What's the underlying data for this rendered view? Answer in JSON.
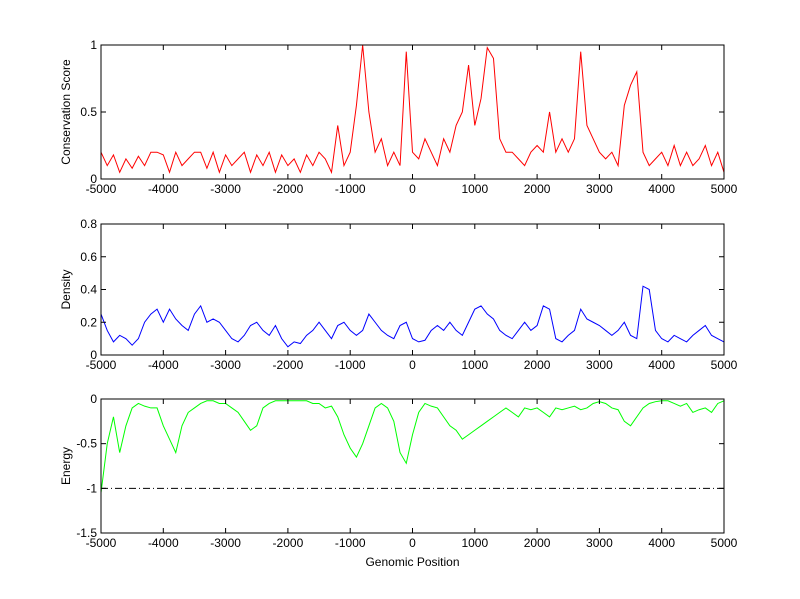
{
  "chart_data": [
    {
      "type": "line",
      "ylabel": "Conservation Score",
      "x": [
        -5000,
        -4900,
        -4800,
        -4700,
        -4600,
        -4500,
        -4400,
        -4300,
        -4200,
        -4100,
        -4000,
        -3900,
        -3800,
        -3700,
        -3600,
        -3500,
        -3400,
        -3300,
        -3200,
        -3100,
        -3000,
        -2900,
        -2800,
        -2700,
        -2600,
        -2500,
        -2400,
        -2300,
        -2200,
        -2100,
        -2000,
        -1900,
        -1800,
        -1700,
        -1600,
        -1500,
        -1400,
        -1300,
        -1200,
        -1100,
        -1000,
        -900,
        -800,
        -700,
        -600,
        -500,
        -400,
        -300,
        -200,
        -100,
        0,
        100,
        200,
        300,
        400,
        500,
        600,
        700,
        800,
        900,
        1000,
        1100,
        1200,
        1300,
        1400,
        1500,
        1600,
        1700,
        1800,
        1900,
        2000,
        2100,
        2200,
        2300,
        2400,
        2500,
        2600,
        2700,
        2800,
        2900,
        3000,
        3100,
        3200,
        3300,
        3400,
        3500,
        3600,
        3700,
        3800,
        3900,
        4000,
        4100,
        4200,
        4300,
        4400,
        4500,
        4600,
        4700,
        4800,
        4900,
        5000
      ],
      "series": [
        {
          "color": "#ff0000",
          "values": [
            0.2,
            0.1,
            0.18,
            0.05,
            0.15,
            0.08,
            0.17,
            0.1,
            0.2,
            0.2,
            0.18,
            0.05,
            0.2,
            0.1,
            0.15,
            0.2,
            0.2,
            0.08,
            0.2,
            0.05,
            0.18,
            0.1,
            0.15,
            0.2,
            0.05,
            0.18,
            0.1,
            0.2,
            0.05,
            0.18,
            0.1,
            0.15,
            0.05,
            0.18,
            0.1,
            0.2,
            0.15,
            0.05,
            0.4,
            0.1,
            0.2,
            0.55,
            1,
            0.5,
            0.2,
            0.3,
            0.1,
            0.2,
            0.1,
            0.95,
            0.2,
            0.15,
            0.3,
            0.2,
            0.1,
            0.3,
            0.2,
            0.4,
            0.5,
            0.85,
            0.4,
            0.6,
            0.98,
            0.9,
            0.3,
            0.2,
            0.2,
            0.15,
            0.1,
            0.2,
            0.25,
            0.2,
            0.5,
            0.2,
            0.3,
            0.2,
            0.3,
            0.95,
            0.4,
            0.3,
            0.2,
            0.15,
            0.2,
            0.1,
            0.55,
            0.7,
            0.8,
            0.2,
            0.1,
            0.15,
            0.2,
            0.1,
            0.25,
            0.1,
            0.2,
            0.1,
            0.15,
            0.25,
            0.1,
            0.2,
            0.05
          ]
        }
      ],
      "xlim": [
        -5000,
        5000
      ],
      "xticks": [
        -5000,
        -4000,
        -3000,
        -2000,
        -1000,
        0,
        1000,
        2000,
        3000,
        4000,
        5000
      ],
      "ylim": [
        0,
        1
      ],
      "yticks": [
        0,
        0.5,
        1
      ]
    },
    {
      "type": "line",
      "ylabel": "Density",
      "x": [
        -5000,
        -4900,
        -4800,
        -4700,
        -4600,
        -4500,
        -4400,
        -4300,
        -4200,
        -4100,
        -4000,
        -3900,
        -3800,
        -3700,
        -3600,
        -3500,
        -3400,
        -3300,
        -3200,
        -3100,
        -3000,
        -2900,
        -2800,
        -2700,
        -2600,
        -2500,
        -2400,
        -2300,
        -2200,
        -2100,
        -2000,
        -1900,
        -1800,
        -1700,
        -1600,
        -1500,
        -1400,
        -1300,
        -1200,
        -1100,
        -1000,
        -900,
        -800,
        -700,
        -600,
        -500,
        -400,
        -300,
        -200,
        -100,
        0,
        100,
        200,
        300,
        400,
        500,
        600,
        700,
        800,
        900,
        1000,
        1100,
        1200,
        1300,
        1400,
        1500,
        1600,
        1700,
        1800,
        1900,
        2000,
        2100,
        2200,
        2300,
        2400,
        2500,
        2600,
        2700,
        2800,
        2900,
        3000,
        3100,
        3200,
        3300,
        3400,
        3500,
        3600,
        3700,
        3800,
        3900,
        4000,
        4100,
        4200,
        4300,
        4400,
        4500,
        4600,
        4700,
        4800,
        4900,
        5000
      ],
      "series": [
        {
          "color": "#0000ff",
          "values": [
            0.25,
            0.15,
            0.08,
            0.12,
            0.1,
            0.06,
            0.1,
            0.2,
            0.25,
            0.28,
            0.2,
            0.28,
            0.22,
            0.18,
            0.15,
            0.25,
            0.3,
            0.2,
            0.22,
            0.2,
            0.15,
            0.1,
            0.08,
            0.12,
            0.18,
            0.2,
            0.15,
            0.12,
            0.18,
            0.1,
            0.05,
            0.08,
            0.07,
            0.12,
            0.15,
            0.2,
            0.15,
            0.1,
            0.18,
            0.2,
            0.15,
            0.12,
            0.15,
            0.25,
            0.2,
            0.15,
            0.12,
            0.1,
            0.18,
            0.2,
            0.1,
            0.08,
            0.09,
            0.15,
            0.18,
            0.15,
            0.2,
            0.15,
            0.12,
            0.2,
            0.28,
            0.3,
            0.25,
            0.22,
            0.15,
            0.12,
            0.1,
            0.15,
            0.2,
            0.15,
            0.18,
            0.3,
            0.28,
            0.1,
            0.08,
            0.12,
            0.15,
            0.28,
            0.22,
            0.2,
            0.18,
            0.15,
            0.12,
            0.15,
            0.2,
            0.12,
            0.1,
            0.42,
            0.4,
            0.15,
            0.1,
            0.08,
            0.12,
            0.1,
            0.08,
            0.12,
            0.15,
            0.18,
            0.12,
            0.1,
            0.08
          ]
        }
      ],
      "xlim": [
        -5000,
        5000
      ],
      "xticks": [
        -5000,
        -4000,
        -3000,
        -2000,
        -1000,
        0,
        1000,
        2000,
        3000,
        4000,
        5000
      ],
      "ylim": [
        0,
        0.8
      ],
      "yticks": [
        0,
        0.2,
        0.4,
        0.6,
        0.8
      ]
    },
    {
      "type": "line",
      "ylabel": "Energy",
      "xlabel": "Genomic Position",
      "x": [
        -5000,
        -4900,
        -4800,
        -4700,
        -4600,
        -4500,
        -4400,
        -4300,
        -4200,
        -4100,
        -4000,
        -3900,
        -3800,
        -3700,
        -3600,
        -3500,
        -3400,
        -3300,
        -3200,
        -3100,
        -3000,
        -2900,
        -2800,
        -2700,
        -2600,
        -2500,
        -2400,
        -2300,
        -2200,
        -2100,
        -2000,
        -1900,
        -1800,
        -1700,
        -1600,
        -1500,
        -1400,
        -1300,
        -1200,
        -1100,
        -1000,
        -900,
        -800,
        -700,
        -600,
        -500,
        -400,
        -300,
        -200,
        -100,
        0,
        100,
        200,
        300,
        400,
        500,
        600,
        700,
        800,
        900,
        1000,
        1100,
        1200,
        1300,
        1400,
        1500,
        1600,
        1700,
        1800,
        1900,
        2000,
        2100,
        2200,
        2300,
        2400,
        2500,
        2600,
        2700,
        2800,
        2900,
        3000,
        3100,
        3200,
        3300,
        3400,
        3500,
        3600,
        3700,
        3800,
        3900,
        4000,
        4100,
        4200,
        4300,
        4400,
        4500,
        4600,
        4700,
        4800,
        4900,
        5000
      ],
      "series": [
        {
          "color": "#00ff00",
          "values": [
            -1.05,
            -0.5,
            -0.2,
            -0.6,
            -0.3,
            -0.1,
            -0.05,
            -0.08,
            -0.1,
            -0.1,
            -0.3,
            -0.45,
            -0.6,
            -0.3,
            -0.15,
            -0.1,
            -0.05,
            -0.02,
            -0.02,
            -0.05,
            -0.05,
            -0.1,
            -0.15,
            -0.25,
            -0.35,
            -0.3,
            -0.1,
            -0.05,
            -0.02,
            -0.02,
            -0.02,
            -0.02,
            -0.02,
            -0.02,
            -0.05,
            -0.05,
            -0.1,
            -0.08,
            -0.2,
            -0.4,
            -0.55,
            -0.65,
            -0.5,
            -0.3,
            -0.1,
            -0.05,
            -0.1,
            -0.25,
            -0.6,
            -0.72,
            -0.4,
            -0.15,
            -0.05,
            -0.08,
            -0.1,
            -0.2,
            -0.3,
            -0.35,
            -0.45,
            -0.4,
            -0.35,
            -0.3,
            -0.25,
            -0.2,
            -0.15,
            -0.1,
            -0.15,
            -0.2,
            -0.1,
            -0.12,
            -0.1,
            -0.15,
            -0.2,
            -0.1,
            -0.12,
            -0.1,
            -0.08,
            -0.12,
            -0.1,
            -0.05,
            -0.03,
            -0.05,
            -0.1,
            -0.12,
            -0.25,
            -0.3,
            -0.2,
            -0.1,
            -0.05,
            -0.03,
            -0.02,
            -0.02,
            -0.05,
            -0.08,
            -0.05,
            -0.15,
            -0.12,
            -0.1,
            -0.15,
            -0.05,
            -0.02
          ]
        }
      ],
      "hline": -1,
      "xlim": [
        -5000,
        5000
      ],
      "xticks": [
        -5000,
        -4000,
        -3000,
        -2000,
        -1000,
        0,
        1000,
        2000,
        3000,
        4000,
        5000
      ],
      "ylim": [
        -1.5,
        0
      ],
      "yticks": [
        -1.5,
        -1,
        -0.5,
        0
      ]
    }
  ]
}
